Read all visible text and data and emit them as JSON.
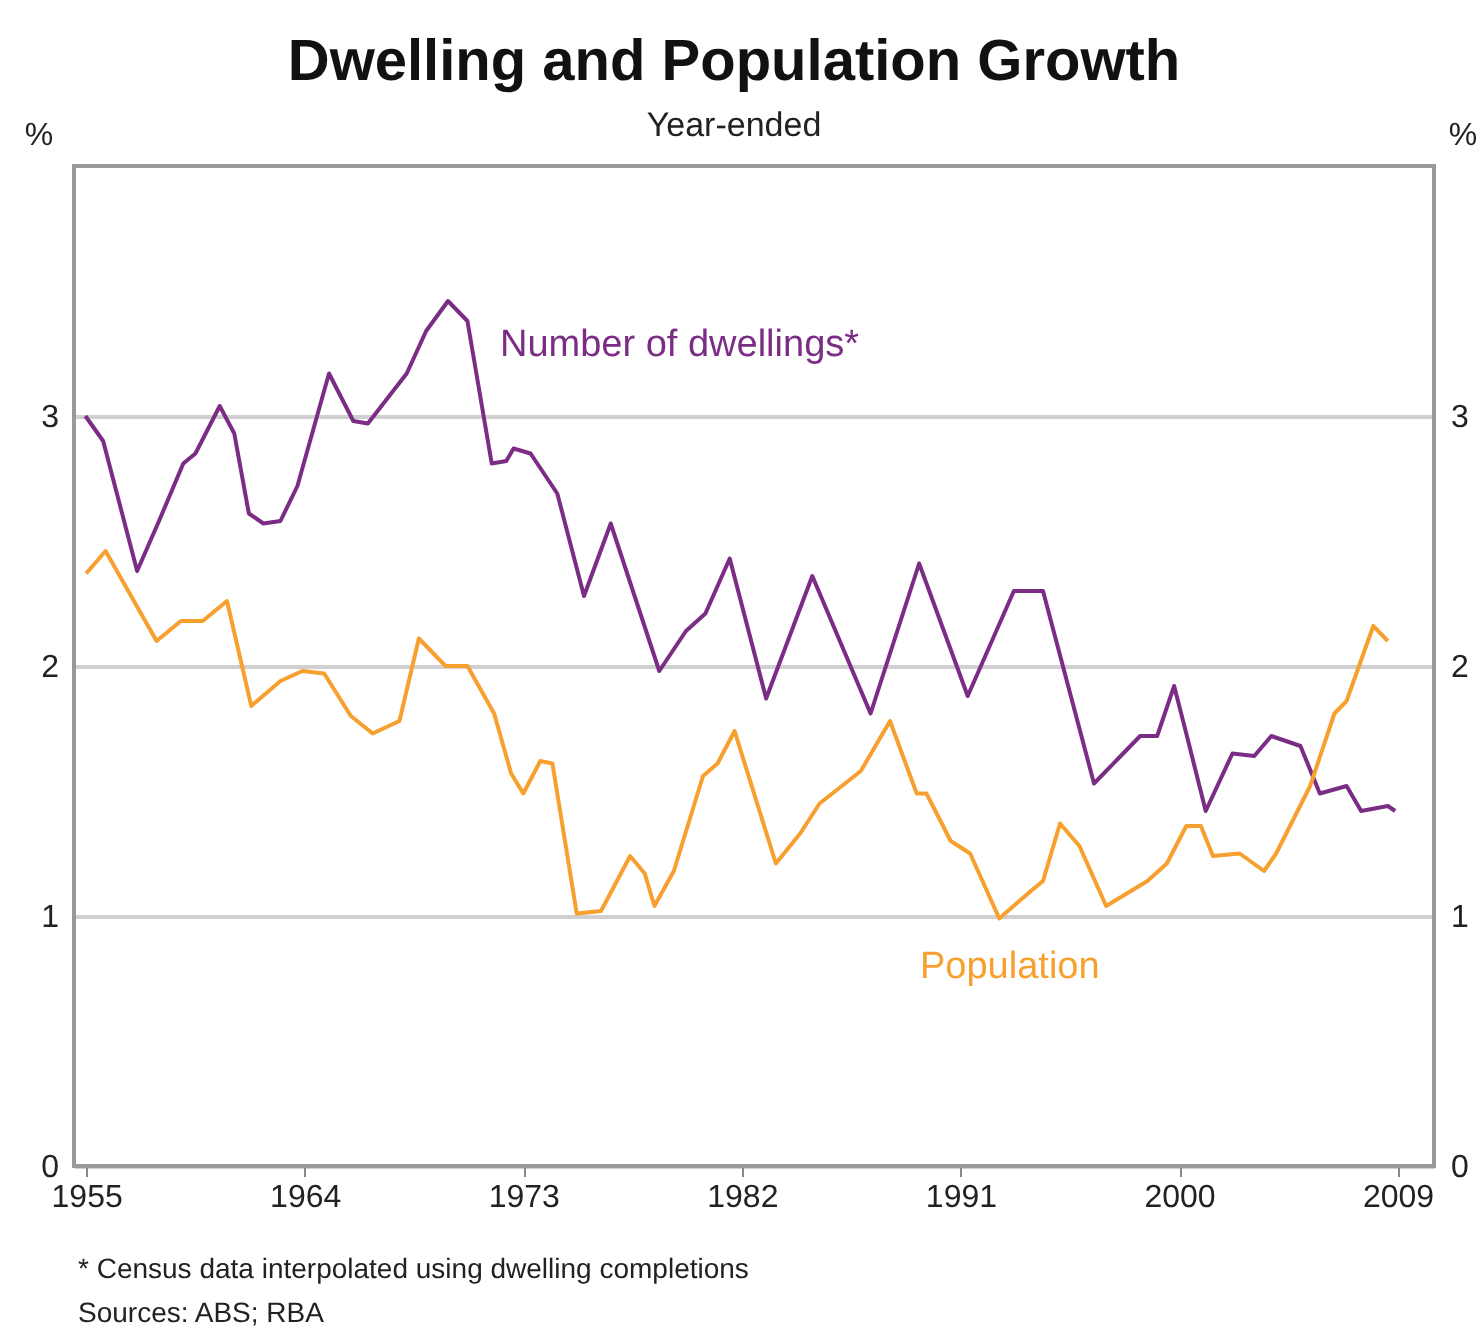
{
  "chart_data": {
    "type": "line",
    "title": "Dwelling and Population Growth",
    "subtitle": "Year-ended",
    "ylabel": "%",
    "y2label": "%",
    "xlim": [
      1955,
      2011
    ],
    "xticks": [
      {
        "value": 1955.5,
        "label": "1955"
      },
      {
        "value": 1964.5,
        "label": "1964"
      },
      {
        "value": 1973.5,
        "label": "1973"
      },
      {
        "value": 1982.5,
        "label": "1982"
      },
      {
        "value": 1991.5,
        "label": "1991"
      },
      {
        "value": 2000.5,
        "label": "2000"
      },
      {
        "value": 2009.5,
        "label": "2009"
      }
    ],
    "ylim": [
      0,
      4
    ],
    "yticks": [
      0,
      1,
      2,
      3
    ],
    "y2lim": [
      0,
      4
    ],
    "y2ticks": [
      0,
      1,
      2,
      3
    ],
    "grid": "y",
    "legend": false,
    "series": [
      {
        "name": "Number of dwellings*",
        "color": "#7b2d86",
        "x": [
          1955.47,
          1956.2,
          1957.6,
          1958.5,
          1959.5,
          1960.0,
          1961.0,
          1961.6,
          1962.2,
          1962.8,
          1963.5,
          1964.2,
          1965.5,
          1966.5,
          1967.1,
          1968.7,
          1969.5,
          1970.4,
          1971.2,
          1972.2,
          1972.8,
          1973.1,
          1973.8,
          1974.9,
          1976.0,
          1977.1,
          1979.1,
          1980.2,
          1981.0,
          1982.0,
          1983.5,
          1985.4,
          1987.8,
          1989.8,
          1991.8,
          1993.7,
          1994.9,
          1997.0,
          1998.1,
          1998.9,
          1999.6,
          2000.3,
          2000.8,
          2001.6,
          2002.7,
          2003.6,
          2004.3,
          2005.5,
          2006.3,
          2007.4,
          2008.0,
          2009.1,
          2009.4
        ],
        "values": [
          3.0,
          2.9,
          2.38,
          2.58,
          2.81,
          2.85,
          3.04,
          2.93,
          2.61,
          2.57,
          2.58,
          2.72,
          3.17,
          2.98,
          2.97,
          3.17,
          3.34,
          3.46,
          3.38,
          2.81,
          2.82,
          2.87,
          2.85,
          2.69,
          2.28,
          2.57,
          1.98,
          2.14,
          2.21,
          2.43,
          1.87,
          2.36,
          1.81,
          2.41,
          1.88,
          2.3,
          2.3,
          1.53,
          1.64,
          1.72,
          1.72,
          1.92,
          1.73,
          1.42,
          1.65,
          1.64,
          1.72,
          1.68,
          1.49,
          1.52,
          1.42,
          1.44,
          1.42
        ]
      },
      {
        "name": "Population",
        "color": "#f7a030",
        "x": [
          1955.5,
          1956.3,
          1958.4,
          1959.4,
          1960.3,
          1961.3,
          1962.3,
          1963.5,
          1964.4,
          1965.3,
          1966.4,
          1967.3,
          1968.4,
          1969.2,
          1970.3,
          1971.2,
          1972.3,
          1973.0,
          1973.5,
          1974.2,
          1974.7,
          1975.7,
          1976.7,
          1977.9,
          1978.5,
          1978.9,
          1979.7,
          1980.9,
          1981.5,
          1982.2,
          1983.9,
          1984.9,
          1985.7,
          1987.4,
          1988.6,
          1989.7,
          1990.1,
          1991.1,
          1991.9,
          1993.1,
          1994.4,
          1994.9,
          1995.6,
          1996.4,
          1997.5,
          1999.2,
          2000.0,
          2000.8,
          2001.4,
          2001.9,
          2003.0,
          2004.0,
          2004.5,
          2005.9,
          2006.9,
          2007.4,
          2008.5,
          2009.1
        ],
        "values": [
          2.37,
          2.46,
          2.1,
          2.18,
          2.18,
          2.26,
          1.84,
          1.94,
          1.98,
          1.97,
          1.8,
          1.73,
          1.78,
          2.11,
          2.0,
          2.0,
          1.81,
          1.57,
          1.49,
          1.62,
          1.61,
          1.01,
          1.02,
          1.24,
          1.17,
          1.04,
          1.18,
          1.56,
          1.61,
          1.74,
          1.21,
          1.33,
          1.45,
          1.58,
          1.78,
          1.49,
          1.49,
          1.3,
          1.25,
          0.99,
          1.1,
          1.14,
          1.37,
          1.28,
          1.04,
          1.14,
          1.21,
          1.36,
          1.36,
          1.24,
          1.25,
          1.18,
          1.25,
          1.52,
          1.81,
          1.86,
          2.16,
          2.1
        ]
      }
    ],
    "annotations": [
      "*  Census data interpolated using dwelling completions",
      "Sources: ABS; RBA"
    ]
  }
}
